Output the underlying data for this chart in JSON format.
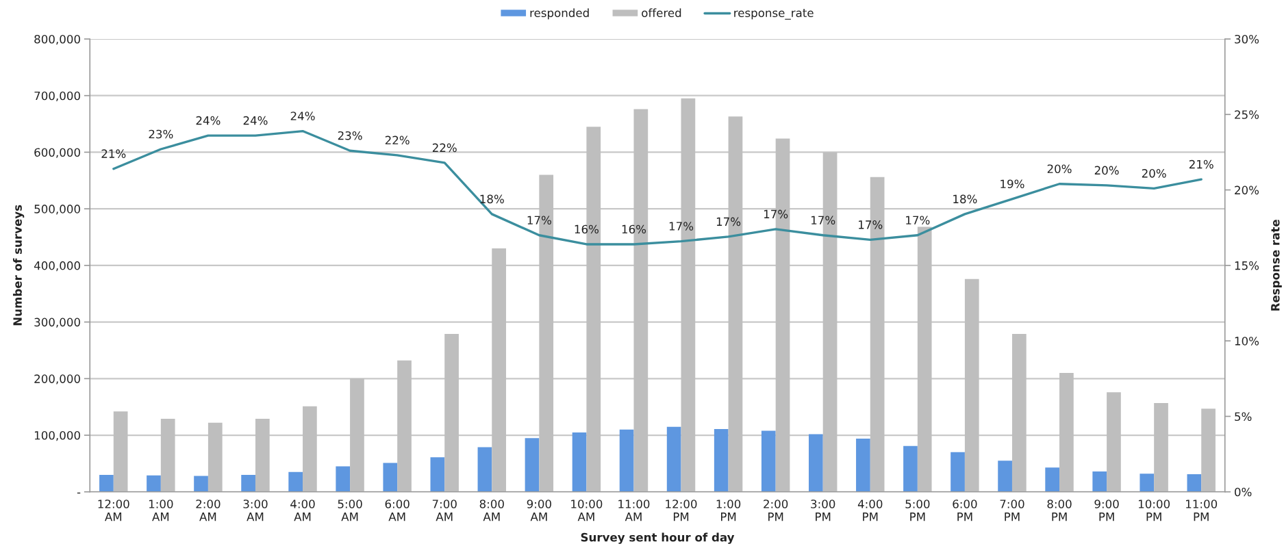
{
  "chart_data": {
    "type": "bar",
    "xlabel": "Survey sent hour of day",
    "ylabel": "Number of surveys",
    "y2label": "Response rate",
    "categories": [
      "12:00\nAM",
      "1:00\nAM",
      "2:00\nAM",
      "3:00\nAM",
      "4:00\nAM",
      "5:00\nAM",
      "6:00\nAM",
      "7:00\nAM",
      "8:00\nAM",
      "9:00\nAM",
      "10:00\nAM",
      "11:00\nAM",
      "12:00\nPM",
      "1:00\nPM",
      "2:00\nPM",
      "3:00\nPM",
      "4:00\nPM",
      "5:00\nPM",
      "6:00\nPM",
      "7:00\nPM",
      "8:00\nPM",
      "9:00\nPM",
      "10:00\nPM",
      "11:00\nPM"
    ],
    "series": [
      {
        "name": "responded",
        "color": "#5e97e0",
        "values": [
          30000,
          29000,
          28000,
          30000,
          35000,
          45000,
          51000,
          61000,
          79000,
          95000,
          105000,
          110000,
          115000,
          111000,
          108000,
          102000,
          94000,
          81000,
          70000,
          55000,
          43000,
          36000,
          32000,
          31000
        ]
      },
      {
        "name": "offered",
        "color": "#bebebe",
        "values": [
          142000,
          129000,
          122000,
          129000,
          151000,
          200000,
          232000,
          279000,
          430000,
          560000,
          645000,
          676000,
          695000,
          663000,
          624000,
          600000,
          556000,
          468000,
          376000,
          279000,
          210000,
          176000,
          157000,
          147000
        ]
      },
      {
        "name": "response_rate",
        "type": "line",
        "axis": "y2",
        "color": "#3b8e9e",
        "values": [
          21.4,
          22.7,
          23.6,
          23.6,
          23.9,
          22.6,
          22.3,
          21.8,
          18.4,
          17.0,
          16.4,
          16.4,
          16.6,
          16.9,
          17.4,
          17.0,
          16.7,
          17.0,
          18.4,
          19.4,
          20.4,
          20.3,
          20.1,
          20.7
        ],
        "value_labels": [
          "21%",
          "23%",
          "24%",
          "24%",
          "24%",
          "23%",
          "22%",
          "22%",
          "18%",
          "17%",
          "16%",
          "16%",
          "17%",
          "17%",
          "17%",
          "17%",
          "17%",
          "17%",
          "18%",
          "19%",
          "20%",
          "20%",
          "20%",
          "21%"
        ]
      }
    ],
    "ylim": [
      0,
      800000
    ],
    "yticks": [
      {
        "value": 0,
        "label": "-"
      },
      {
        "value": 100000,
        "label": "100,000"
      },
      {
        "value": 200000,
        "label": "200,000"
      },
      {
        "value": 300000,
        "label": "300,000"
      },
      {
        "value": 400000,
        "label": "400,000"
      },
      {
        "value": 500000,
        "label": "500,000"
      },
      {
        "value": 600000,
        "label": "600,000"
      },
      {
        "value": 700000,
        "label": "700,000"
      },
      {
        "value": 800000,
        "label": "800,000"
      }
    ],
    "y2lim": [
      0,
      30
    ],
    "y2ticks": [
      {
        "value": 0,
        "label": "0%"
      },
      {
        "value": 5,
        "label": "5%"
      },
      {
        "value": 10,
        "label": "10%"
      },
      {
        "value": 15,
        "label": "15%"
      },
      {
        "value": 20,
        "label": "20%"
      },
      {
        "value": 25,
        "label": "25%"
      },
      {
        "value": 30,
        "label": "30%"
      }
    ],
    "grid": "y",
    "legend": "top"
  }
}
